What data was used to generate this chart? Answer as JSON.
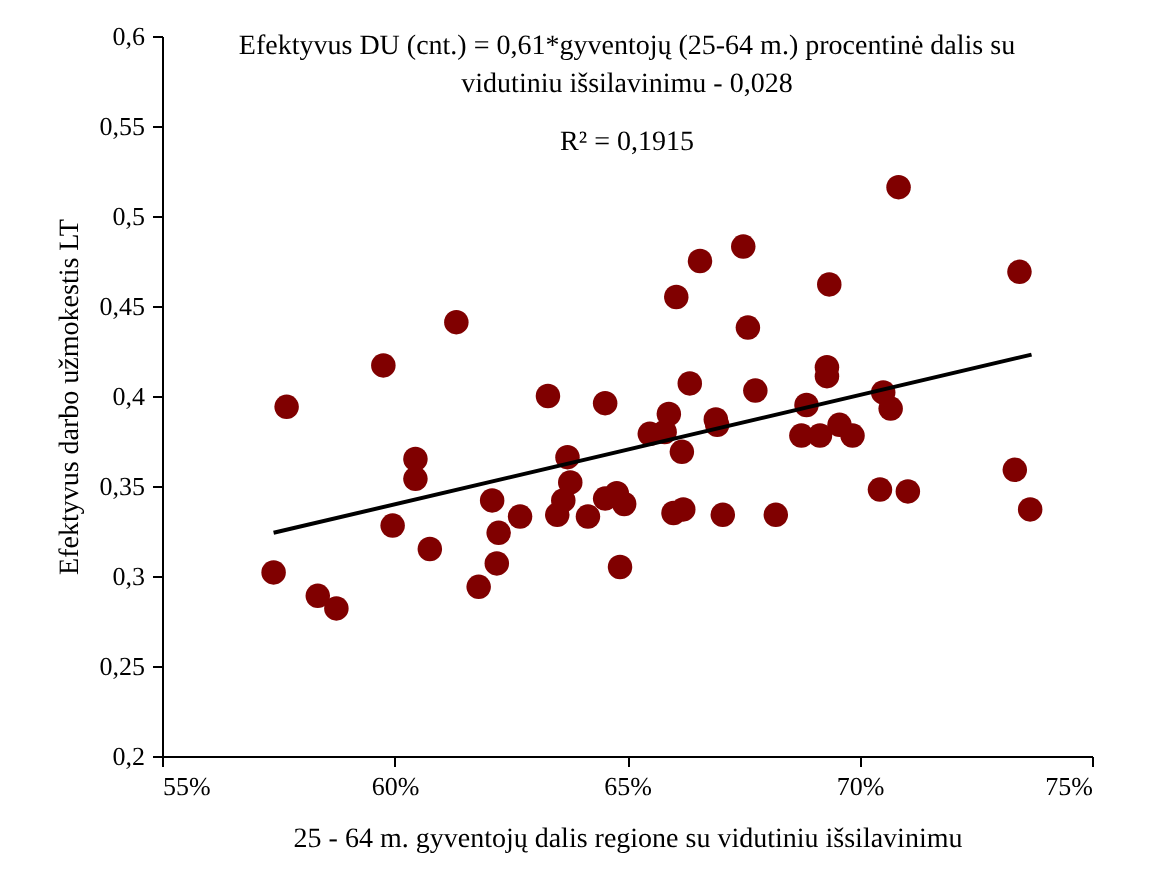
{
  "chart_data": {
    "type": "scatter",
    "xlabel": "25 - 64 m. gyventojų dalis regione su vidutiniu išsilavinimu",
    "ylabel": "Efektyvus darbo užmokestis LT",
    "annotations": [
      "Efektyvus DU (cnt.) = 0,61*gyventojų (25-64 m.) procentinė dalis su\nvidutiniu išsilavinimu - 0,028",
      "R² = 0,1915"
    ],
    "xlim": [
      0.55,
      0.75
    ],
    "xticks": [
      {
        "value": 0.55,
        "label": "55%"
      },
      {
        "value": 0.6,
        "label": "60%"
      },
      {
        "value": 0.65,
        "label": "65%"
      },
      {
        "value": 0.7,
        "label": "70%"
      },
      {
        "value": 0.75,
        "label": "75%"
      }
    ],
    "ylim": [
      0.2,
      0.6
    ],
    "yticks": [
      {
        "value": 0.2,
        "label": "0,2"
      },
      {
        "value": 0.25,
        "label": "0,25"
      },
      {
        "value": 0.3,
        "label": "0,3"
      },
      {
        "value": 0.35,
        "label": "0,35"
      },
      {
        "value": 0.4,
        "label": "0,4"
      },
      {
        "value": 0.45,
        "label": "0,45"
      },
      {
        "value": 0.5,
        "label": "0,5"
      },
      {
        "value": 0.55,
        "label": "0,55"
      },
      {
        "value": 0.6,
        "label": "0,6"
      }
    ],
    "grid": false,
    "marker": "circle",
    "series": [
      {
        "color": "#800000",
        "x": [
          0.574,
          0.5768,
          0.5835,
          0.5875,
          0.5976,
          0.6133,
          0.6045,
          0.6045,
          0.5996,
          0.6076,
          0.6181,
          0.622,
          0.6224,
          0.621,
          0.627,
          0.633,
          0.6453,
          0.6372,
          0.6378,
          0.6363,
          0.635,
          0.6416,
          0.6453,
          0.6478,
          0.6485,
          0.7084,
          0.7344,
          0.675,
          0.6657,
          0.6935,
          0.6606,
          0.676,
          0.693,
          0.693,
          0.6635,
          0.6776,
          0.659,
          0.6886,
          0.7051,
          0.7067,
          0.6691,
          0.6694,
          0.6957,
          0.6549,
          0.6581,
          0.6875,
          0.6915,
          0.6985,
          0.6618,
          0.7044,
          0.7104,
          0.7334,
          0.7367,
          0.6494,
          0.66,
          0.6621,
          0.6706,
          0.682
        ],
        "values": [
          0.302,
          0.394,
          0.289,
          0.282,
          0.417,
          0.441,
          0.365,
          0.354,
          0.328,
          0.315,
          0.294,
          0.307,
          0.324,
          0.342,
          0.333,
          0.4,
          0.396,
          0.366,
          0.352,
          0.342,
          0.334,
          0.333,
          0.343,
          0.346,
          0.305,
          0.516,
          0.469,
          0.483,
          0.475,
          0.462,
          0.455,
          0.438,
          0.416,
          0.411,
          0.407,
          0.403,
          0.39,
          0.395,
          0.402,
          0.393,
          0.387,
          0.384,
          0.384,
          0.379,
          0.38,
          0.378,
          0.378,
          0.378,
          0.369,
          0.348,
          0.347,
          0.359,
          0.337,
          0.34,
          0.335,
          0.337,
          0.334,
          0.334
        ]
      },
      {
        "type": "line",
        "marker": "none",
        "line_style": "solid",
        "color": "#000000",
        "x": [
          0.574,
          0.737
        ],
        "values": [
          0.324,
          0.423
        ]
      }
    ]
  }
}
